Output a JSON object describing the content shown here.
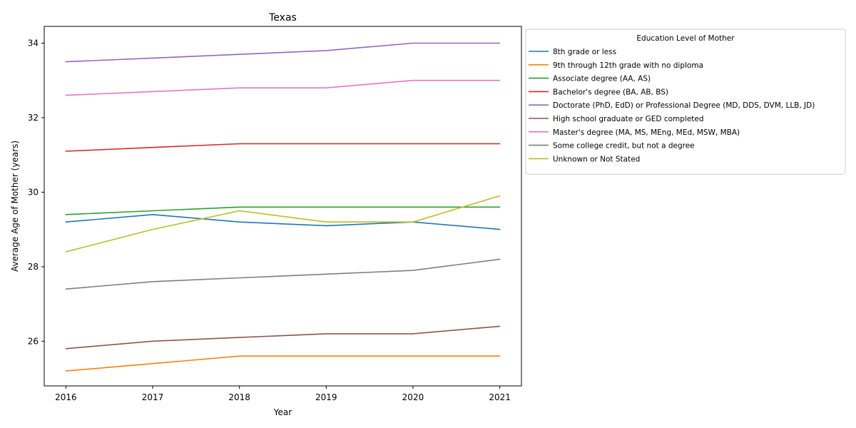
{
  "chart_data": {
    "type": "line",
    "title": "Texas",
    "xlabel": "Year",
    "ylabel": "Average Age of Mother (years)",
    "x": [
      2016,
      2017,
      2018,
      2019,
      2020,
      2021
    ],
    "x_ticks": [
      "2016",
      "2017",
      "2018",
      "2019",
      "2020",
      "2021"
    ],
    "xlim": [
      2015.75,
      2021.25
    ],
    "ylim": [
      24.8,
      34.45
    ],
    "y_ticks": [
      26,
      28,
      30,
      32,
      34
    ],
    "y_tick_labels": [
      "26",
      "28",
      "30",
      "32",
      "34"
    ],
    "grid": false,
    "legend": {
      "title": "Education Level of Mother",
      "placement": "outside-right-top"
    },
    "series": [
      {
        "name": "8th grade or less",
        "color": "#1f77b4",
        "values": [
          29.2,
          29.4,
          29.2,
          29.1,
          29.2,
          29.0
        ]
      },
      {
        "name": "9th through 12th grade with no diploma",
        "color": "#ff7f0e",
        "values": [
          25.2,
          25.4,
          25.6,
          25.6,
          25.6,
          25.6
        ]
      },
      {
        "name": "Associate degree (AA, AS)",
        "color": "#2ca02c",
        "values": [
          29.4,
          29.5,
          29.6,
          29.6,
          29.6,
          29.6
        ]
      },
      {
        "name": "Bachelor's degree (BA, AB, BS)",
        "color": "#d62728",
        "values": [
          31.1,
          31.2,
          31.3,
          31.3,
          31.3,
          31.3
        ]
      },
      {
        "name": "Doctorate (PhD, EdD) or Professional Degree (MD, DDS, DVM, LLB, JD)",
        "color": "#9467bd",
        "values": [
          33.5,
          33.6,
          33.7,
          33.8,
          34.0,
          34.0
        ]
      },
      {
        "name": "High school graduate or GED completed",
        "color": "#8c564b",
        "values": [
          25.8,
          26.0,
          26.1,
          26.2,
          26.2,
          26.4
        ]
      },
      {
        "name": "Master's degree (MA, MS, MEng, MEd, MSW, MBA)",
        "color": "#e377c2",
        "values": [
          32.6,
          32.7,
          32.8,
          32.8,
          33.0,
          33.0
        ]
      },
      {
        "name": "Some college credit, but not a degree",
        "color": "#7f7f7f",
        "values": [
          27.4,
          27.6,
          27.7,
          27.8,
          27.9,
          28.2
        ]
      },
      {
        "name": "Unknown or Not Stated",
        "color": "#bcbd22",
        "values": [
          28.4,
          29.0,
          29.5,
          29.2,
          29.2,
          29.9
        ]
      }
    ]
  }
}
